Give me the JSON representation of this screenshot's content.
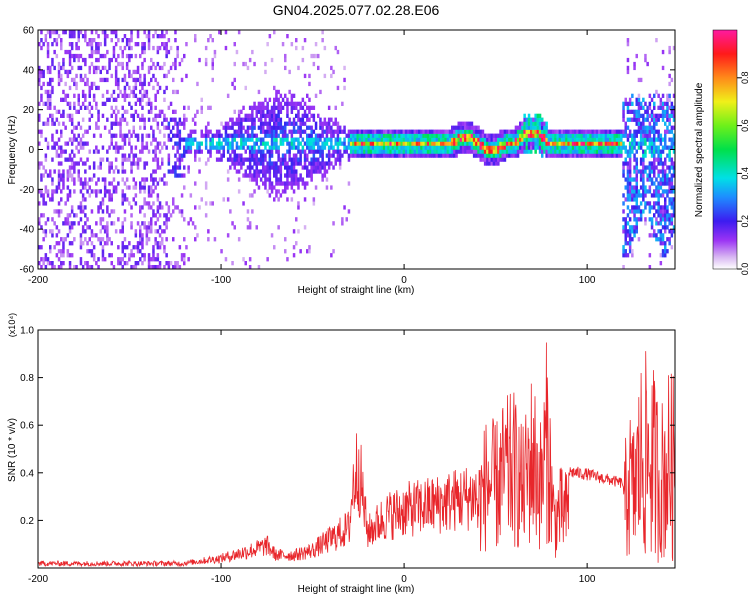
{
  "title": "GN04.2025.077.02.28.E06",
  "colors": {
    "snr_line": "#e8262b",
    "axis": "#000000",
    "background": "#ffffff"
  },
  "chart_data": [
    {
      "type": "heatmap",
      "title": "GN04.2025.077.02.28.E06",
      "xlabel": "Height of straight line (km)",
      "ylabel": "Frequency (Hz)",
      "xlim": [
        -200,
        148
      ],
      "ylim": [
        -60,
        60
      ],
      "x_ticks": [
        "-200",
        "-100",
        "0",
        "100"
      ],
      "y_ticks": [
        "60",
        "40",
        "20",
        "0",
        "-20",
        "-40",
        "-60"
      ],
      "colorbar": {
        "label": "Normalized spectral amplitude",
        "range": [
          0,
          1
        ],
        "ticks": [
          "0.0",
          "0.2",
          "0.4",
          "0.6",
          "0.8"
        ],
        "colormap": "rainbow (violet → blue → cyan → green → yellow → red → magenta)"
      },
      "features": [
        {
          "x_range": [
            -200,
            -130
          ],
          "description_value": "scattered low-amplitude noise across full band",
          "amplitude": 0.1
        },
        {
          "x_range": [
            -120,
            -30
          ],
          "freq_range": [
            -25,
            25
          ],
          "amplitude": 0.3
        },
        {
          "x_range": [
            -30,
            120
          ],
          "freq_center": 2,
          "amplitude": 1.0
        },
        {
          "x_range": [
            120,
            148
          ],
          "freq_range": [
            -50,
            25
          ],
          "amplitude": 0.3
        }
      ]
    },
    {
      "type": "line",
      "xlabel": "Height of straight line (km)",
      "ylabel": "SNR (10 * v/v)",
      "y_multiplier": "(x10⁴)",
      "xlim": [
        -200,
        148
      ],
      "ylim": [
        0,
        1.0
      ],
      "x_ticks": [
        "-200",
        "-100",
        "0",
        "100"
      ],
      "y_ticks": [
        "0.2",
        "0.4",
        "0.6",
        "0.8",
        "1.0"
      ],
      "series": [
        {
          "x": [
            -200,
            -150,
            -120,
            -100,
            -90,
            -80,
            -75,
            -70,
            -60,
            -50,
            -40,
            -30,
            -28,
            -25,
            -20,
            -10,
            0,
            10,
            20,
            30,
            40,
            45,
            50,
            55,
            60,
            65,
            70,
            75,
            78,
            80,
            82,
            85,
            90,
            100,
            110,
            115,
            120,
            122,
            125,
            130,
            135,
            140,
            145,
            148
          ],
          "y": [
            0.02,
            0.02,
            0.03,
            0.06,
            0.09,
            0.12,
            0.14,
            0.08,
            0.08,
            0.11,
            0.18,
            0.25,
            0.5,
            0.65,
            0.22,
            0.32,
            0.36,
            0.38,
            0.4,
            0.43,
            0.45,
            0.65,
            0.62,
            0.72,
            0.75,
            0.6,
            0.85,
            0.62,
            0.99,
            0.68,
            0.35,
            0.43,
            0.41,
            0.4,
            0.38,
            0.37,
            0.36,
            0.75,
            0.6,
            0.92,
            0.9,
            0.7,
            0.85,
            0.8
          ]
        }
      ]
    }
  ]
}
